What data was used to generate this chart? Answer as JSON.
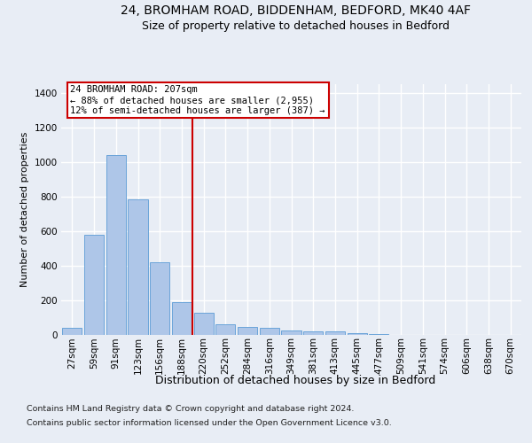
{
  "title_line1": "24, BROMHAM ROAD, BIDDENHAM, BEDFORD, MK40 4AF",
  "title_line2": "Size of property relative to detached houses in Bedford",
  "xlabel": "Distribution of detached houses by size in Bedford",
  "ylabel": "Number of detached properties",
  "categories": [
    "27sqm",
    "59sqm",
    "91sqm",
    "123sqm",
    "156sqm",
    "188sqm",
    "220sqm",
    "252sqm",
    "284sqm",
    "316sqm",
    "349sqm",
    "381sqm",
    "413sqm",
    "445sqm",
    "477sqm",
    "509sqm",
    "541sqm",
    "574sqm",
    "606sqm",
    "638sqm",
    "670sqm"
  ],
  "values": [
    40,
    575,
    1040,
    785,
    420,
    185,
    125,
    60,
    45,
    40,
    25,
    20,
    20,
    10,
    5,
    0,
    0,
    0,
    0,
    0,
    0
  ],
  "bar_color": "#aec6e8",
  "bar_edge_color": "#5b9bd5",
  "vline_x_index": 5.5,
  "vline_color": "#cc0000",
  "annotation_line1": "24 BROMHAM ROAD: 207sqm",
  "annotation_line2": "← 88% of detached houses are smaller (2,955)",
  "annotation_line3": "12% of semi-detached houses are larger (387) →",
  "annotation_box_color": "#cc0000",
  "footnote_line1": "Contains HM Land Registry data © Crown copyright and database right 2024.",
  "footnote_line2": "Contains public sector information licensed under the Open Government Licence v3.0.",
  "ylim": [
    0,
    1450
  ],
  "yticks": [
    0,
    200,
    400,
    600,
    800,
    1000,
    1200,
    1400
  ],
  "bg_color": "#e8edf5",
  "plot_bg_color": "#e8edf5",
  "grid_color": "#ffffff",
  "title_fontsize": 10,
  "subtitle_fontsize": 9,
  "ylabel_fontsize": 8,
  "xlabel_fontsize": 9,
  "tick_fontsize": 7.5,
  "footnote_fontsize": 6.8
}
